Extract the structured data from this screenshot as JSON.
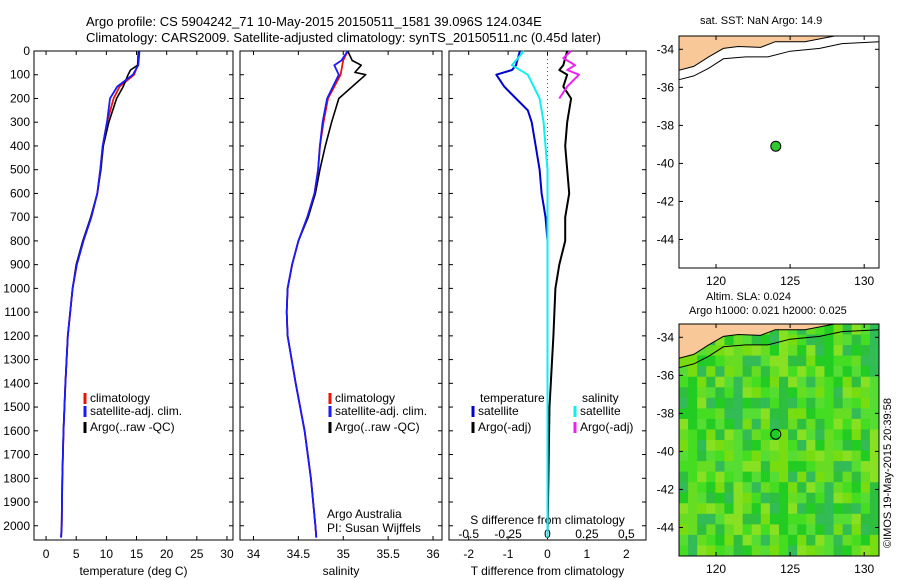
{
  "header": {
    "line1": "Argo profile: CS 5904242_71 10-May-2015 20150511_1581 39.096S 124.034E",
    "line2": "Climatology: CARS2009. Satellite-adjusted climatology: synTS_20150511.nc (0.45d later)"
  },
  "colors": {
    "climatology": "#ee1100",
    "satellite_clim": "#1a1aff",
    "argo": "#000000",
    "sat_T_diff": "#0000cc",
    "sat_S_diff": "#11eeee",
    "argo_S_diff": "#ee22ee",
    "land": "#f8c898",
    "point": "#2ec82e"
  },
  "chart_data": [
    {
      "type": "line",
      "title": "",
      "xlabel": "temperature (deg C)",
      "ylabel": "",
      "xlim": [
        -2,
        31
      ],
      "ylim": [
        2060,
        0
      ],
      "xticks": [
        0,
        5,
        10,
        15,
        20,
        25,
        30
      ],
      "yticks": [
        0,
        100,
        200,
        300,
        400,
        500,
        600,
        700,
        800,
        900,
        1000,
        1100,
        1200,
        1300,
        1400,
        1500,
        1600,
        1700,
        1800,
        1900,
        2000
      ],
      "legend": [
        "climatology",
        "satellite-adj. clim.",
        "Argo(..raw -QC)"
      ],
      "series": [
        {
          "name": "climatology",
          "depth": [
            0,
            60,
            100,
            150,
            200,
            300,
            400,
            500,
            600,
            700,
            800,
            900,
            1000,
            1200,
            1400,
            1600,
            1800,
            2000,
            2050
          ],
          "values": [
            15.3,
            15.2,
            14.6,
            12.2,
            11.2,
            10.1,
            9.4,
            9.0,
            8.5,
            7.5,
            6.2,
            5.1,
            4.4,
            3.6,
            3.2,
            2.9,
            2.7,
            2.6,
            2.5
          ]
        },
        {
          "name": "satellite-adj. clim.",
          "depth": [
            0,
            60,
            100,
            150,
            200,
            300,
            400,
            500,
            600,
            700,
            800,
            900,
            1000,
            1200,
            1400,
            1600,
            1800,
            2000,
            2050
          ],
          "values": [
            15.5,
            15.3,
            14.4,
            11.8,
            10.6,
            10.1,
            9.4,
            9.0,
            8.5,
            7.5,
            6.2,
            5.1,
            4.4,
            3.6,
            3.2,
            2.9,
            2.7,
            2.6,
            2.5
          ]
        },
        {
          "name": "Argo(..raw -QC)",
          "depth": [
            0,
            60,
            80,
            100,
            150,
            200,
            300,
            400,
            500,
            600,
            700,
            800,
            900,
            1000,
            1200,
            1400,
            1600,
            1800,
            2000,
            2050
          ],
          "values": [
            15.4,
            15.2,
            14.0,
            13.6,
            12.8,
            11.7,
            10.4,
            9.5,
            9.1,
            8.5,
            7.4,
            6.1,
            5.0,
            4.4,
            3.6,
            3.2,
            2.9,
            2.7,
            2.6,
            2.5
          ]
        }
      ]
    },
    {
      "type": "line",
      "title": "",
      "xlabel": "salinity",
      "ylabel": "",
      "xlim": [
        33.85,
        36.1
      ],
      "ylim": [
        2060,
        0
      ],
      "xticks": [
        34,
        34.5,
        35,
        35.5,
        36
      ],
      "legend": [
        "climatology",
        "satellite-adj. clim.",
        "Argo(..raw -QC)"
      ],
      "annotations": [
        "Argo Australia",
        "PI: Susan Wijffels"
      ],
      "series": [
        {
          "name": "climatology",
          "depth": [
            0,
            40,
            100,
            200,
            300,
            400,
            500,
            600,
            700,
            800,
            900,
            1000,
            1100,
            1200,
            1400,
            1600,
            1800,
            2000,
            2050
          ],
          "values": [
            35.05,
            35.0,
            34.97,
            34.83,
            34.78,
            34.74,
            34.72,
            34.68,
            34.6,
            34.5,
            34.43,
            34.38,
            34.37,
            34.38,
            34.47,
            34.57,
            34.64,
            34.69,
            34.7
          ]
        },
        {
          "name": "satellite-adj. clim.",
          "depth": [
            0,
            40,
            60,
            100,
            200,
            300,
            400,
            500,
            600,
            700,
            800,
            900,
            1000,
            1100,
            1200,
            1400,
            1600,
            1800,
            2000,
            2050
          ],
          "values": [
            35.05,
            34.98,
            34.9,
            34.95,
            34.82,
            34.77,
            34.74,
            34.72,
            34.68,
            34.6,
            34.5,
            34.43,
            34.38,
            34.37,
            34.38,
            34.47,
            34.57,
            34.64,
            34.69,
            34.7
          ]
        },
        {
          "name": "Argo(..raw -QC)",
          "depth": [
            0,
            40,
            60,
            90,
            100,
            200,
            300,
            400,
            500,
            600,
            700,
            800,
            900,
            1000,
            1100,
            1200,
            1400,
            1600,
            1800,
            2000,
            2050
          ],
          "values": [
            35.05,
            35.1,
            35.2,
            35.13,
            35.25,
            34.95,
            34.87,
            34.8,
            34.74,
            34.69,
            34.61,
            34.5,
            34.43,
            34.38,
            34.37,
            34.38,
            34.47,
            34.57,
            34.64,
            34.69,
            34.7
          ]
        }
      ]
    },
    {
      "type": "line",
      "title": "",
      "xlabel": "T difference from climatology",
      "xlabel_top": "S difference from climatology",
      "ylabel": "",
      "xlim": [
        -2.5,
        2.5
      ],
      "ylim": [
        2060,
        0
      ],
      "xticks": [
        -2,
        -1,
        0,
        1,
        2
      ],
      "xticks_S": [
        "-0.5",
        "-0.25",
        "0",
        "0.25",
        "0.5"
      ],
      "legend": {
        "temperature_header": "temperature",
        "salinity_header": "salinity",
        "items": [
          "satellite",
          "Argo(-adj)",
          "satellite",
          "Argo(-adj)"
        ]
      },
      "series": [
        {
          "name": "satellite",
          "depth": [
            0,
            60,
            80,
            100,
            150,
            200,
            250,
            300,
            400,
            500,
            600,
            650,
            700,
            800,
            900,
            1000,
            1500,
            2050
          ],
          "values": [
            -0.7,
            -0.8,
            -0.9,
            -1.3,
            -1.1,
            -0.8,
            -0.5,
            -0.4,
            -0.3,
            -0.2,
            -0.15,
            -0.1,
            -0.05,
            0,
            0,
            0,
            0,
            0
          ]
        },
        {
          "name": "Argo(-adj)",
          "depth": [
            0,
            60,
            80,
            100,
            150,
            200,
            300,
            400,
            500,
            600,
            700,
            800,
            900,
            1000,
            1200,
            1500,
            2050
          ],
          "values": [
            0.5,
            0.4,
            0.3,
            0.5,
            0.4,
            0.6,
            0.5,
            0.45,
            0.5,
            0.55,
            0.45,
            0.45,
            0.3,
            0.2,
            0.15,
            0.05,
            0
          ]
        },
        {
          "name": "satellite",
          "depth": [
            0,
            60,
            100,
            150,
            200,
            300,
            400,
            500,
            700,
            900,
            1200,
            1500,
            2050
          ],
          "values": [
            -0.6,
            -0.9,
            -0.5,
            -0.35,
            -0.2,
            -0.1,
            -0.05,
            0,
            0,
            0,
            0,
            0,
            0
          ]
        },
        {
          "name": "Argo(-adj)",
          "depth": [
            0,
            30,
            60,
            80,
            100,
            150,
            200
          ],
          "values": [
            0.6,
            0.4,
            0.7,
            0.5,
            0.8,
            0.5,
            0.3
          ]
        }
      ]
    },
    {
      "type": "scatter",
      "title": "sat. SST: NaN Argo: 14.9",
      "xlim": [
        117.5,
        131
      ],
      "ylim": [
        -45.5,
        -33.3
      ],
      "xticks": [
        120,
        125,
        130
      ],
      "yticks": [
        -34,
        -36,
        -38,
        -40,
        -42,
        -44
      ],
      "points": [
        {
          "x": 124.034,
          "y": -39.096
        }
      ]
    },
    {
      "type": "heatmap",
      "title": "Altim. SLA: 0.024",
      "subtitle": "Argo h1000: 0.021 h2000: 0.025",
      "xlim": [
        117.5,
        131
      ],
      "ylim": [
        -45.5,
        -33.3
      ],
      "xticks": [
        120,
        125,
        130
      ],
      "yticks": [
        -34,
        -36,
        -38,
        -40,
        -42,
        -44
      ],
      "points": [
        {
          "x": 124.034,
          "y": -39.096
        }
      ]
    }
  ],
  "footer": {
    "side_label": "©IMOS 19-May-2015 20:39:58"
  }
}
